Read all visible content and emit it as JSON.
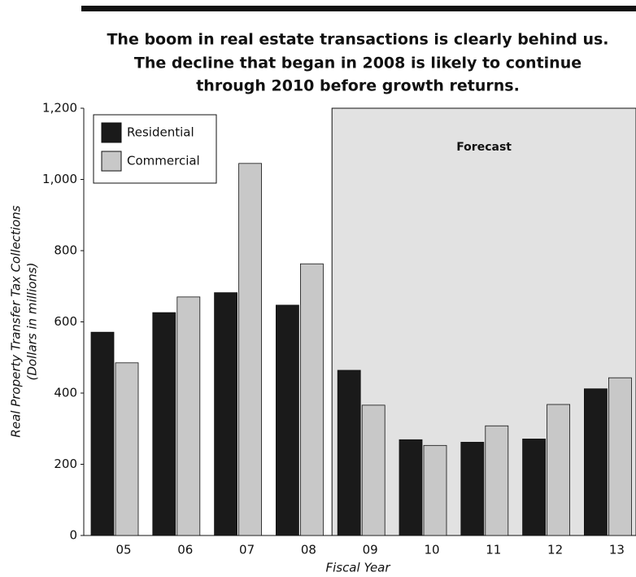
{
  "chart_data": {
    "type": "bar",
    "title": [
      "The boom in real estate transactions is clearly behind us.",
      "The decline that began in 2008 is likely to continue",
      "through 2010 before growth returns."
    ],
    "annotation": "Forecast",
    "forecast_start": "09",
    "ylabel": [
      "Real Property Transfer Tax Collections",
      "(Dollars in millions)"
    ],
    "xlabel": "Fiscal Year",
    "categories": [
      "05",
      "06",
      "07",
      "08",
      "09",
      "10",
      "11",
      "12",
      "13"
    ],
    "series": [
      {
        "name": "Residential",
        "color": "#1a1a1a",
        "values": [
          571,
          626,
          682,
          647,
          464,
          269,
          262,
          271,
          412
        ]
      },
      {
        "name": "Commercial",
        "color": "#c8c8c8",
        "values": [
          485,
          670,
          1045,
          763,
          366,
          253,
          308,
          368,
          443
        ]
      }
    ],
    "ylim": [
      0,
      1200
    ],
    "yticks": [
      0,
      200,
      400,
      600,
      800,
      {
        "value": 1000,
        "label": "1,000"
      },
      {
        "value": 1200,
        "label": "1,200"
      }
    ],
    "legend": "top-left"
  }
}
